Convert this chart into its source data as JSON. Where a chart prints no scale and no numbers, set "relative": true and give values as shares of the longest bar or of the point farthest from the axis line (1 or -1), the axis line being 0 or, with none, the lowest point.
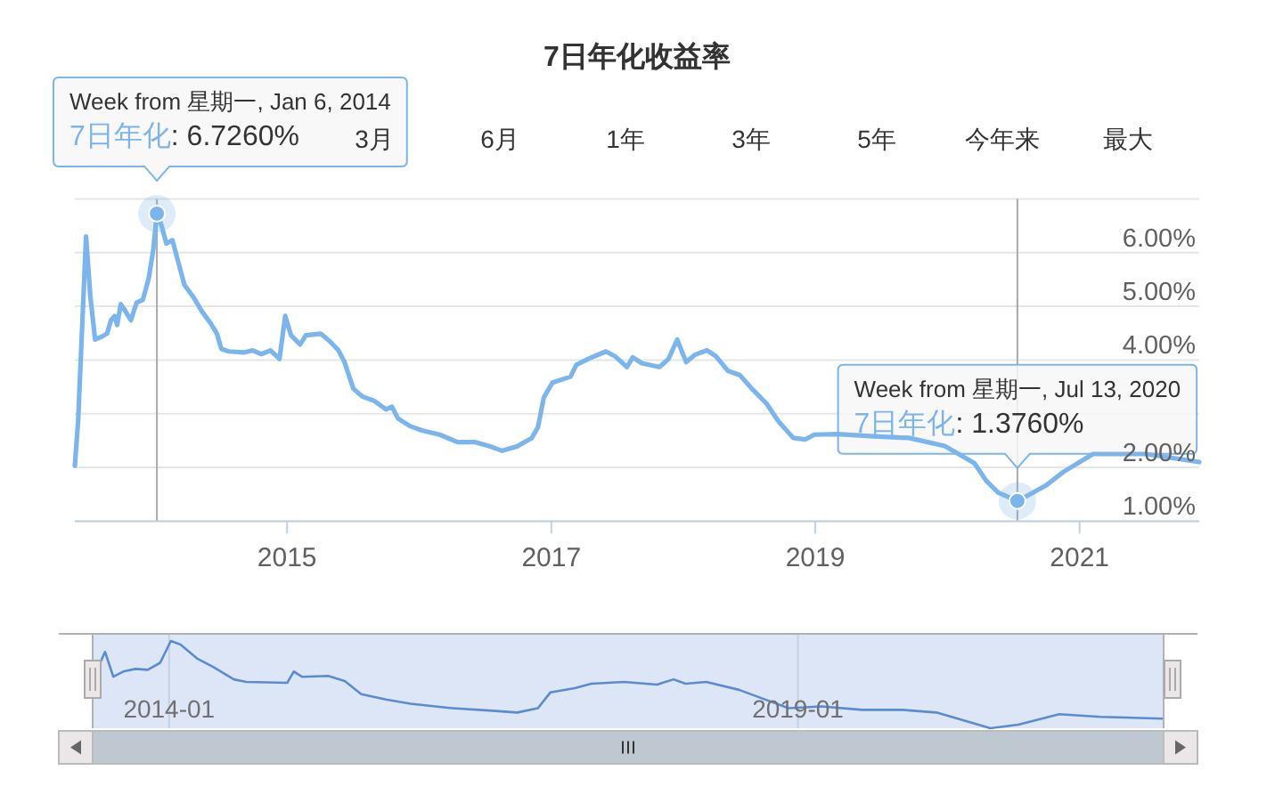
{
  "chart_data": [
    {
      "type": "line",
      "title": "7日年化收益率",
      "annotations": [
        "3月",
        "6月",
        "1年",
        "3年",
        "5年",
        "今年来",
        "最大",
        "Week from 星期一, Jan 6, 2014",
        "7日年化: 6.7260%",
        "Week from 星期一, Jul 13, 2020",
        "7日年化: 1.3760%"
      ],
      "x": [
        "2013-05-24",
        "2013-06-02",
        "2013-06-24",
        "2013-07-06",
        "2013-07-19",
        "2013-08-05",
        "2013-08-21",
        "2013-09-01",
        "2013-09-11",
        "2013-09-18",
        "2013-09-28",
        "2013-10-09",
        "2013-10-26",
        "2013-11-11",
        "2013-11-28",
        "2013-12-14",
        "2013-12-27",
        "2014-01-06",
        "2014-01-19",
        "2014-02-01",
        "2014-02-18",
        "2014-03-03",
        "2014-03-23",
        "2014-04-16",
        "2014-05-11",
        "2014-06-04",
        "2014-06-21",
        "2014-07-03",
        "2014-07-24",
        "2014-09-03",
        "2014-09-28",
        "2014-10-22",
        "2014-11-16",
        "2014-12-11",
        "2014-12-27",
        "2015-01-12",
        "2015-02-06",
        "2015-02-22",
        "2015-04-04",
        "2015-04-29",
        "2015-05-23",
        "2015-06-09",
        "2015-07-03",
        "2015-07-28",
        "2015-08-30",
        "2015-10-02",
        "2015-10-18",
        "2015-11-04",
        "2015-12-07",
        "2016-01-09",
        "2016-02-27",
        "2016-04-17",
        "2016-06-05",
        "2016-07-16",
        "2016-08-18",
        "2016-09-28",
        "2016-11-08",
        "2016-11-25",
        "2016-12-11",
        "2017-01-04",
        "2017-02-23",
        "2017-03-11",
        "2017-04-13",
        "2017-06-01",
        "2017-06-26",
        "2017-07-29",
        "2017-08-14",
        "2017-09-08",
        "2017-10-27",
        "2017-11-21",
        "2017-12-15",
        "2018-01-09",
        "2018-02-03",
        "2018-03-08",
        "2018-04-01",
        "2018-05-04",
        "2018-06-06",
        "2018-07-09",
        "2018-08-19",
        "2018-09-21",
        "2018-11-01",
        "2018-12-04",
        "2018-12-29",
        "2019-03-04",
        "2019-06-11",
        "2019-09-17",
        "2019-12-25",
        "2020-03-16",
        "2020-04-18",
        "2020-05-21",
        "2020-07-13",
        "2020-08-11",
        "2020-09-29",
        "2020-11-18",
        "2021-02-07",
        "2021-07-04",
        "2021-11-28"
      ],
      "series": [
        {
          "color": "#7cb5ec",
          "values": [
            2.03,
            2.86,
            6.3,
            5.18,
            4.38,
            4.43,
            4.49,
            4.74,
            4.82,
            4.65,
            5.04,
            4.93,
            4.74,
            5.07,
            5.12,
            5.51,
            6.06,
            6.726,
            6.5,
            6.17,
            6.23,
            5.9,
            5.4,
            5.18,
            4.9,
            4.68,
            4.49,
            4.21,
            4.16,
            4.14,
            4.18,
            4.11,
            4.18,
            4.02,
            4.82,
            4.46,
            4.29,
            4.46,
            4.49,
            4.35,
            4.18,
            3.96,
            3.47,
            3.32,
            3.24,
            3.08,
            3.13,
            2.91,
            2.77,
            2.69,
            2.61,
            2.47,
            2.47,
            2.39,
            2.31,
            2.39,
            2.55,
            2.75,
            3.3,
            3.58,
            3.69,
            3.91,
            4.02,
            4.16,
            4.07,
            3.87,
            4.05,
            3.94,
            3.87,
            4.02,
            4.38,
            3.96,
            4.1,
            4.18,
            4.07,
            3.8,
            3.72,
            3.47,
            3.19,
            2.86,
            2.55,
            2.52,
            2.61,
            2.62,
            2.58,
            2.55,
            2.4,
            2.08,
            1.75,
            1.53,
            1.376,
            1.48,
            1.66,
            1.92,
            2.25,
            2.25,
            2.1
          ]
        }
      ],
      "xlim": [
        "2013-05-24",
        "2021-11-28"
      ],
      "xticks": [
        "2015",
        "2017",
        "2019",
        "2021"
      ],
      "ylim": [
        1,
        7
      ],
      "yticks": [
        {
          "value": 1,
          "label": "1.00%"
        },
        {
          "value": 2,
          "label": "2.00%"
        },
        {
          "value": 3,
          "label": null
        },
        {
          "value": 4,
          "label": "4.00%"
        },
        {
          "value": 5,
          "label": "5.00%"
        },
        {
          "value": 6,
          "label": "6.00%"
        },
        {
          "value": 7,
          "label": null
        }
      ],
      "grid": "y",
      "ref_lines": [
        {
          "axis": "x",
          "value": "2014-01-06",
          "color": "#aaaaaa"
        },
        {
          "axis": "x",
          "value": "2020-07-13",
          "color": "#aaaaaa"
        }
      ]
    },
    {
      "type": "line",
      "relative": true,
      "x": [
        "2013-05-24",
        "2013-06-29",
        "2013-07-23",
        "2013-08-21",
        "2013-09-25",
        "2013-10-31",
        "2013-12-06",
        "2014-01-06",
        "2014-02-03",
        "2014-03-23",
        "2014-05-10",
        "2014-07-08",
        "2014-08-13",
        "2014-12-10",
        "2014-12-29",
        "2015-01-22",
        "2015-04-08",
        "2015-05-26",
        "2015-07-13",
        "2015-09-23",
        "2015-12-03",
        "2016-04-01",
        "2016-07-29",
        "2016-10-08",
        "2016-12-07",
        "2017-01-12",
        "2017-03-24",
        "2017-05-11",
        "2017-08-14",
        "2017-11-18",
        "2018-01-05",
        "2018-02-09",
        "2018-04-10",
        "2018-07-14",
        "2018-10-18",
        "2018-12-05",
        "2019-03-10",
        "2019-07-07",
        "2019-11-03",
        "2020-02-07",
        "2020-04-18",
        "2020-07-13",
        "2020-10-02",
        "2021-01-29",
        "2021-05-29",
        "2021-11-28"
      ],
      "series": [
        {
          "color": "#5a8bd0",
          "values": [
            0.56,
            0.875,
            0.59,
            0.65,
            0.68,
            0.67,
            0.75,
            1,
            0.96,
            0.8,
            0.7,
            0.56,
            0.53,
            0.52,
            0.65,
            0.59,
            0.6,
            0.54,
            0.39,
            0.33,
            0.28,
            0.23,
            0.2,
            0.18,
            0.23,
            0.41,
            0.46,
            0.51,
            0.53,
            0.5,
            0.56,
            0.51,
            0.53,
            0.44,
            0.3,
            0.23,
            0.25,
            0.21,
            0.21,
            0.18,
            0.1,
            0,
            0.04,
            0.16,
            0.13,
            0.11
          ]
        }
      ],
      "xlim": [
        "2013-05-24",
        "2021-11-28"
      ],
      "xticks": [
        "2014-01",
        "2019-01"
      ],
      "grid": "x",
      "tick_labels": "x"
    }
  ]
}
